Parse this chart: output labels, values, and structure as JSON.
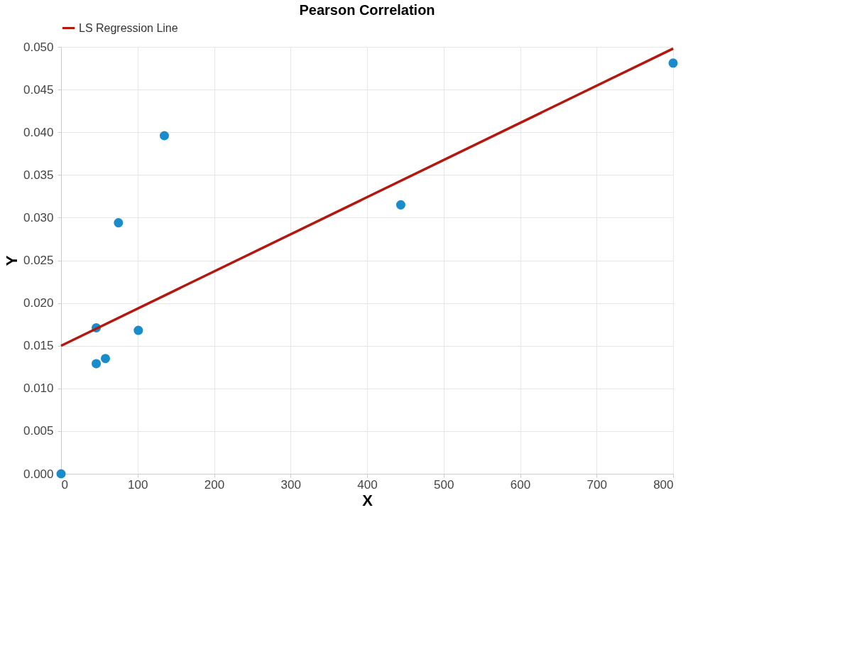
{
  "chart_data": {
    "type": "scatter",
    "title": "Pearson Correlation",
    "xlabel": "X",
    "ylabel": "Y",
    "xlim": [
      0,
      800
    ],
    "xticks": [
      0,
      100,
      200,
      300,
      400,
      500,
      600,
      700,
      800
    ],
    "ylim": [
      0,
      0.05
    ],
    "yticks": [
      {
        "value": 0,
        "label": "0.000"
      },
      {
        "value": 0.005,
        "label": "0.005"
      },
      {
        "value": 0.01,
        "label": "0.010"
      },
      {
        "value": 0.015,
        "label": "0.015"
      },
      {
        "value": 0.02,
        "label": "0.020"
      },
      {
        "value": 0.025,
        "label": "0.025"
      },
      {
        "value": 0.03,
        "label": "0.030"
      },
      {
        "value": 0.035,
        "label": "0.035"
      },
      {
        "value": 0.04,
        "label": "0.040"
      },
      {
        "value": 0.045,
        "label": "0.045"
      },
      {
        "value": 0.05,
        "label": "0.050"
      }
    ],
    "grid": true,
    "legend": "top",
    "series": [
      {
        "marker": "circle",
        "color": "#1a8ccc",
        "x": [
          0,
          46,
          46,
          58,
          75,
          101,
          135,
          444,
          800
        ],
        "values": [
          0.0,
          0.0171,
          0.0129,
          0.0135,
          0.0294,
          0.0168,
          0.0396,
          0.0315,
          0.0481
        ]
      },
      {
        "type": "line",
        "name": "LS Regression Line",
        "color": "#b5160e",
        "line_style": "solid",
        "marker": "none",
        "x": [
          0,
          800
        ],
        "values": [
          0.015,
          0.0498
        ]
      }
    ]
  }
}
